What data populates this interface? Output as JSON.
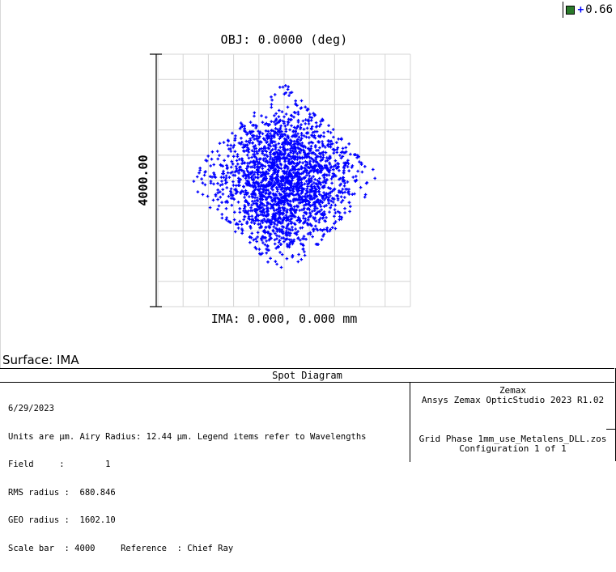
{
  "legend": {
    "value": "0.66",
    "color_box": "#2a7a2a",
    "marker_color": "#0000ff"
  },
  "plot": {
    "title": "OBJ: 0.0000 (deg)",
    "xlabel": "IMA: 0.000, 0.000 mm",
    "scale_bar_label": "4000.00",
    "grid": true,
    "spot_color": "#0000ff"
  },
  "surface_label": "Surface: IMA",
  "panel": {
    "title": "Spot Diagram",
    "left_lines": [
      "6/29/2023",
      "Units are µm. Airy Radius: 12.44 µm. Legend items refer to Wavelengths",
      "Field     :        1",
      "RMS radius :  680.846",
      "GEO radius :  1602.10",
      "Scale bar  : 4000     Reference  : Chief Ray"
    ],
    "right_top": [
      "Zemax",
      "Ansys Zemax OpticStudio 2023 R1.02"
    ],
    "right_bottom": [
      "Grid Phase 1mm_use_Metalens_DLL.zos",
      "Configuration 1 of 1"
    ]
  }
}
